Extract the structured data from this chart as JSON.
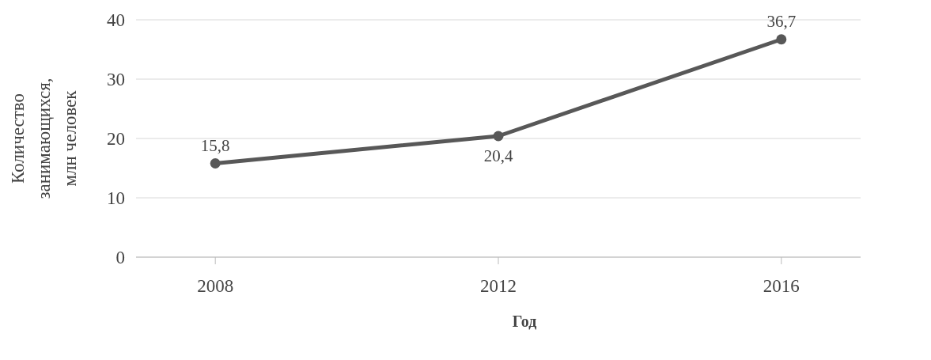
{
  "chart_data": {
    "type": "line",
    "xlabel": "Год",
    "ylabel": "Количество\nзанимающихся,\nмлн человек",
    "categories": [
      "2008",
      "2012",
      "2016"
    ],
    "series": [
      {
        "color": "#585858",
        "values": [
          15.8,
          20.4,
          36.7
        ],
        "value_labels": [
          "15,8",
          "20,4",
          "36,7"
        ]
      }
    ],
    "ylim": [
      0,
      40
    ],
    "yticks": [
      0,
      10,
      20,
      30,
      40
    ],
    "grid": "y",
    "marker": "circle"
  }
}
